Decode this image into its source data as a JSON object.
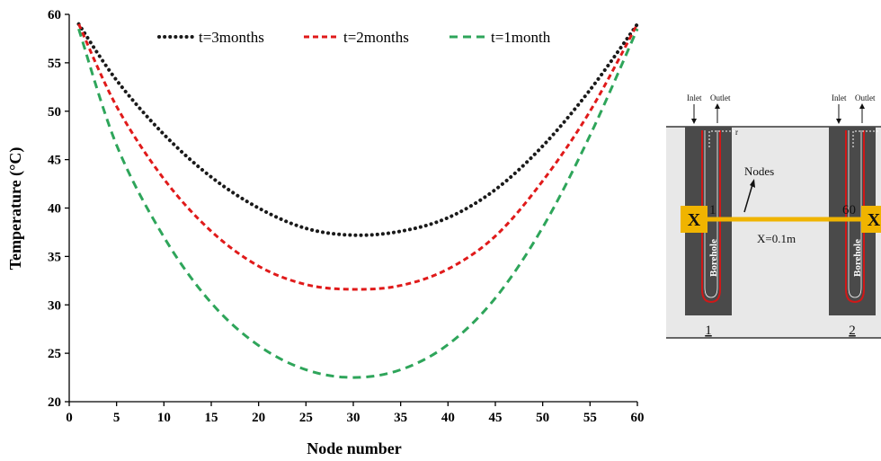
{
  "chart_data": {
    "type": "line",
    "xlabel": "Node number",
    "ylabel": "Temperature (°C)",
    "xlim": [
      0,
      60
    ],
    "ylim": [
      20,
      60
    ],
    "xticks": [
      0,
      5,
      10,
      15,
      20,
      25,
      30,
      35,
      40,
      45,
      50,
      55,
      60
    ],
    "yticks": [
      20,
      25,
      30,
      35,
      40,
      45,
      50,
      55,
      60
    ],
    "grid": false,
    "legend_position": "top",
    "series": [
      {
        "name": "t=3months",
        "color": "#1a1a1a",
        "style": "dotted",
        "x": [
          1,
          5,
          10,
          15,
          20,
          25,
          30,
          35,
          40,
          45,
          50,
          55,
          60
        ],
        "values": [
          59,
          53.2,
          47.6,
          43.2,
          40.0,
          37.9,
          37.2,
          37.6,
          39.0,
          41.9,
          46.4,
          52.2,
          59
        ]
      },
      {
        "name": "t=2months",
        "color": "#e01a1a",
        "style": "dashed",
        "x": [
          1,
          5,
          10,
          15,
          20,
          25,
          30,
          35,
          40,
          45,
          50,
          55,
          60
        ],
        "values": [
          59,
          50.5,
          43.0,
          37.6,
          34.0,
          32.1,
          31.6,
          32.0,
          33.7,
          37.1,
          42.8,
          50.0,
          59
        ]
      },
      {
        "name": "t=1month",
        "color": "#2ea55a",
        "style": "dashed",
        "x": [
          1,
          5,
          10,
          15,
          20,
          25,
          30,
          35,
          40,
          45,
          50,
          55,
          60
        ],
        "values": [
          58.5,
          46.5,
          37.0,
          30.2,
          25.8,
          23.3,
          22.5,
          23.3,
          25.9,
          30.7,
          38.0,
          47.5,
          58.5
        ]
      }
    ]
  },
  "diagram": {
    "inlet_label": "Inlet",
    "outlet_label": "Outlet",
    "r_label": "r",
    "nodes_label": "Nodes",
    "distance_label": "X=0.1m",
    "node_first": "1",
    "node_last": "60",
    "marker_label": "X",
    "borehole_label": "Borehole",
    "borehole_1_number": "1",
    "borehole_2_number": "2",
    "soil_color": "#e8e8e8",
    "borehole_color": "#4a4a4a",
    "pipe_color": "#d01818",
    "marker_color": "#f0b400"
  }
}
